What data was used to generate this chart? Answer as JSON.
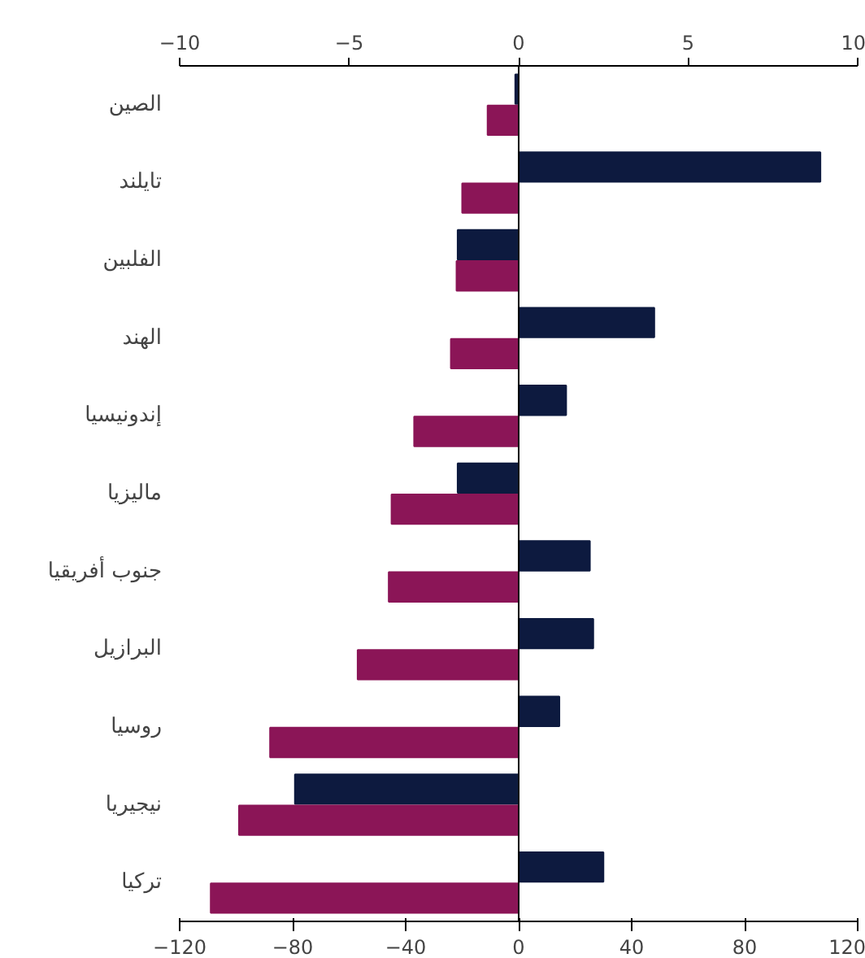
{
  "chart_data": {
    "type": "bar",
    "orientation": "horizontal",
    "categories": [
      "الصين",
      "تايلند",
      "الفلبين",
      "الهند",
      "إندونيسيا",
      "ماليزيا",
      "جنوب أفريقيا",
      "البرازيل",
      "روسيا",
      "نيجيريا",
      "تركيا"
    ],
    "series": [
      {
        "color": "#0d1a3f",
        "axis": "x2",
        "values": [
          -0.1,
          8.9,
          -1.8,
          4.0,
          1.4,
          -1.8,
          2.1,
          2.2,
          1.2,
          -6.6,
          2.5
        ]
      },
      {
        "color": "#8b1557",
        "values": [
          -11,
          -20,
          -22,
          -24,
          -37,
          -45,
          -46,
          -57,
          -88,
          -99,
          -109
        ]
      }
    ],
    "xlim": [
      -120,
      120
    ],
    "xticks": [
      -120,
      -80,
      -40,
      0,
      40,
      80,
      120
    ],
    "x2lim": [
      -10,
      10
    ],
    "x2ticks": [
      -10,
      -5,
      0,
      5,
      10
    ],
    "ref_lines": [
      {
        "axis": "x",
        "value": 0,
        "color": "#000000"
      }
    ],
    "grid": false
  }
}
